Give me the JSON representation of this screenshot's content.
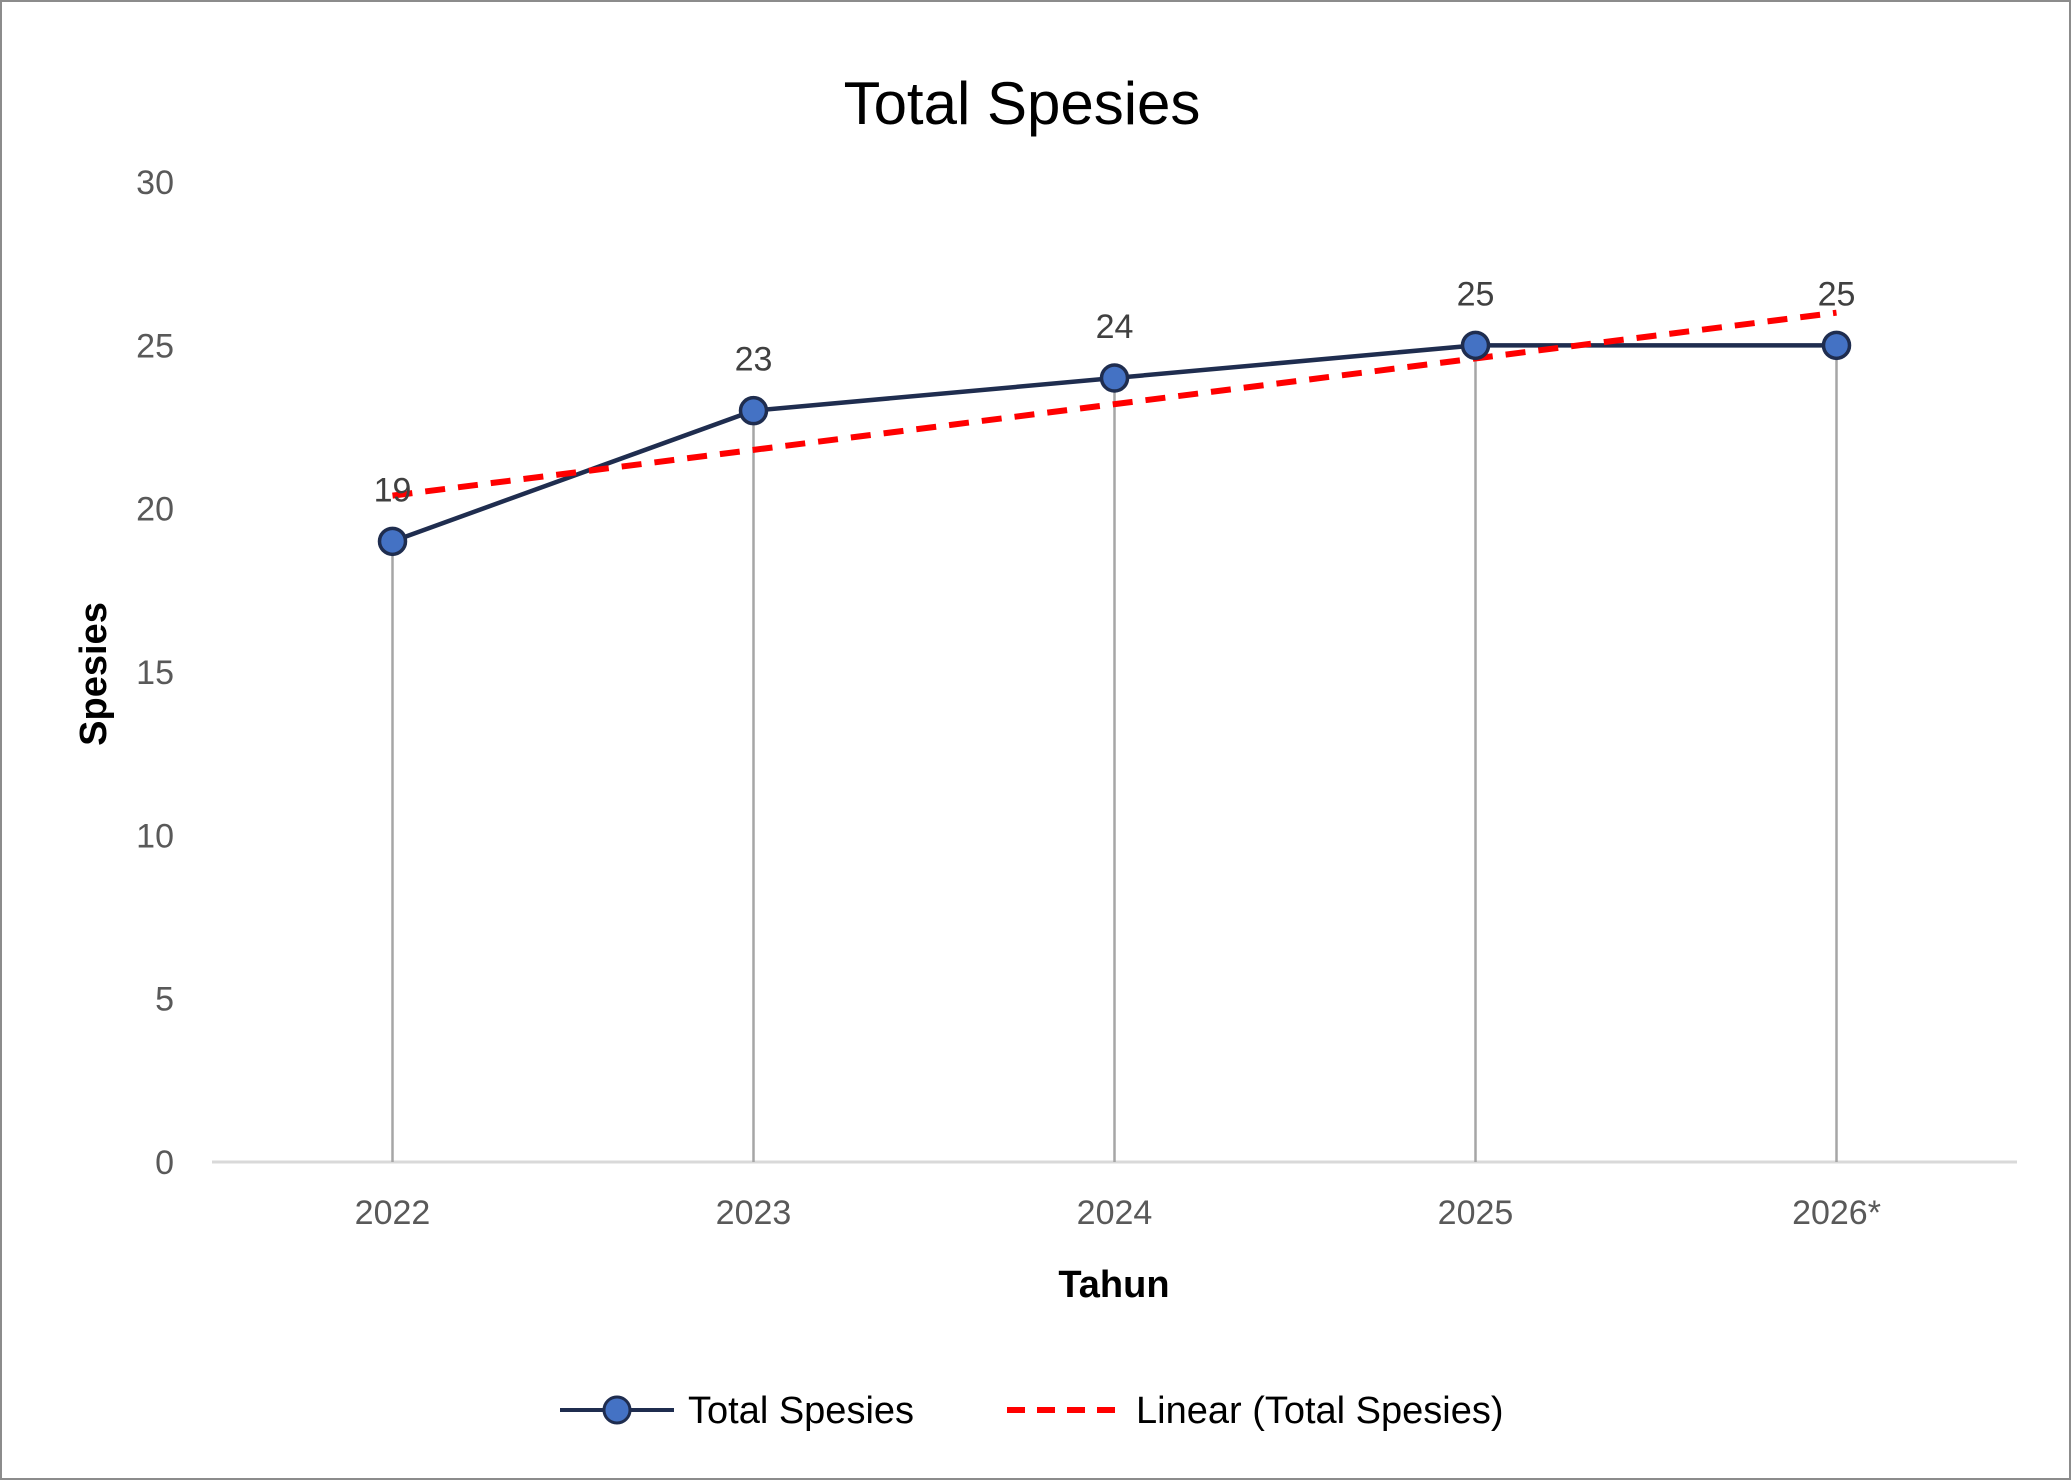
{
  "chart_data": {
    "type": "line",
    "title": "Total Spesies",
    "xlabel": "Tahun",
    "ylabel": "Spesies",
    "categories": [
      "2022",
      "2023",
      "2024",
      "2025",
      "2026*"
    ],
    "ylim": [
      0,
      30
    ],
    "yticks": [
      0,
      5,
      10,
      15,
      20,
      25,
      30
    ],
    "series": [
      {
        "name": "Total Spesies",
        "values": [
          19,
          23,
          24,
          25,
          25
        ],
        "data_labels": [
          "19",
          "23",
          "24",
          "25",
          "25"
        ],
        "color": "#1f2d4f",
        "marker_color": "#4472c4"
      }
    ],
    "trendline": {
      "name": "Linear (Total Spesies)",
      "type": "linear",
      "start_value": 20.4,
      "end_value": 26.0,
      "color": "#ff0000"
    },
    "drop_lines": true,
    "legend": "bottom",
    "grid": false
  }
}
